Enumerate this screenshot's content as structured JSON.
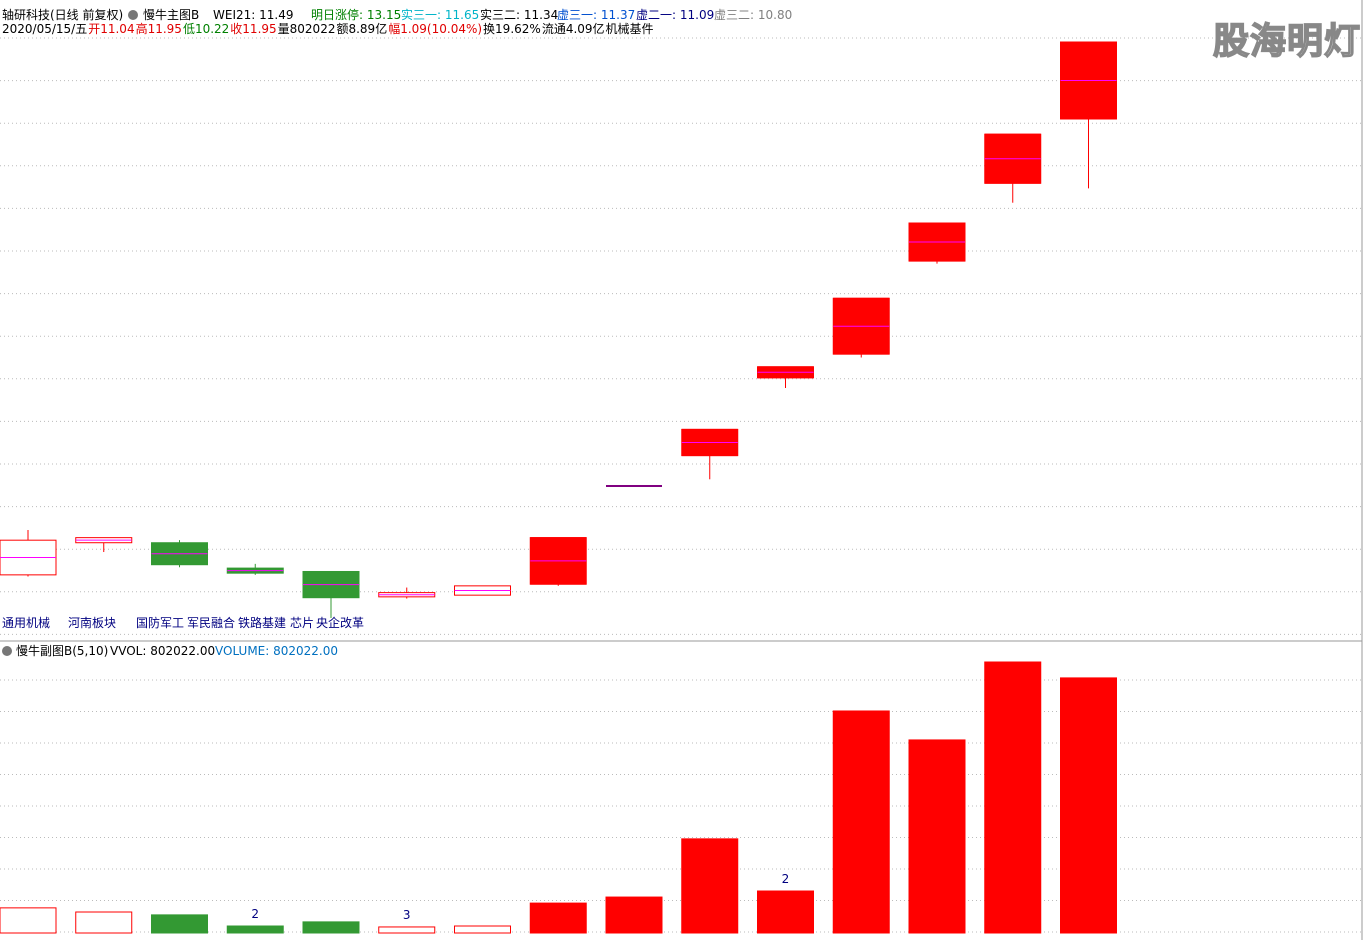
{
  "header": {
    "line1": [
      {
        "text": "轴研科技(日线 前复权)",
        "color": "#000000"
      },
      {
        "text": "慢牛主图B",
        "color": "#000000"
      },
      {
        "text": "WEI21: 11.49",
        "color": "#000000"
      },
      {
        "text": "明日涨停: 13.15",
        "color": "#008000"
      },
      {
        "text": "实三一: 11.65",
        "color": "#00b4c8"
      },
      {
        "text": "实三二: 11.34",
        "color": "#000000"
      },
      {
        "text": "虚三一: 11.37",
        "color": "#0050d0"
      },
      {
        "text": "虚二一: 11.09",
        "color": "#000080"
      },
      {
        "text": "虚三二: 10.80",
        "color": "#808080"
      }
    ],
    "line2": [
      {
        "text": "2020/05/15/五",
        "color": "#000000"
      },
      {
        "text": "开11.04",
        "color": "#e00000"
      },
      {
        "text": "高11.95",
        "color": "#e00000"
      },
      {
        "text": "低10.22",
        "color": "#008000"
      },
      {
        "text": "收11.95",
        "color": "#e00000"
      },
      {
        "text": "量802022",
        "color": "#000000"
      },
      {
        "text": "额8.89亿",
        "color": "#000000"
      },
      {
        "text": "幅1.09(10.04%)",
        "color": "#e00000"
      },
      {
        "text": "换19.62%",
        "color": "#000000"
      },
      {
        "text": "流通4.09亿",
        "color": "#000000"
      },
      {
        "text": "机械基件",
        "color": "#000000"
      }
    ],
    "watermark": "股海明灯"
  },
  "sectors": [
    "通用机械",
    "河南板块",
    "国防军工",
    "军民融合",
    "铁路基建",
    "芯片",
    "央企改革"
  ],
  "volume_header": [
    {
      "text": "慢牛副图B(5,10)",
      "color": "#000000"
    },
    {
      "text": "VVOL: 802022.00",
      "color": "#000000"
    },
    {
      "text": "VOLUME: 802022.00",
      "color": "#0070c0"
    }
  ],
  "chart_data": [
    {
      "type": "candlestick",
      "open": [
        5.65,
        6.03,
        6.03,
        5.73,
        5.69,
        5.39,
        5.41,
        5.54,
        6.7,
        7.06,
        7.98,
        8.26,
        9.36,
        10.28,
        11.04
      ],
      "high": [
        6.18,
        6.09,
        6.06,
        5.78,
        5.69,
        5.5,
        5.52,
        6.09,
        6.7,
        7.37,
        8.11,
        8.92,
        9.81,
        10.86,
        11.95
      ],
      "low": [
        5.63,
        5.92,
        5.74,
        5.65,
        5.14,
        5.37,
        5.41,
        5.52,
        6.7,
        6.78,
        7.86,
        8.22,
        9.33,
        10.05,
        10.22
      ],
      "close": [
        6.06,
        6.09,
        5.77,
        5.67,
        5.38,
        5.44,
        5.52,
        6.09,
        6.7,
        7.37,
        8.11,
        8.92,
        9.81,
        10.86,
        11.95
      ],
      "up_color": "#ff0000",
      "down_color": "#339933",
      "flat_color": "#800080",
      "solid": [
        false,
        false,
        true,
        true,
        true,
        false,
        false,
        true,
        true,
        true,
        true,
        true,
        true,
        true,
        true
      ]
    },
    {
      "type": "volume",
      "values": [
        79000,
        66000,
        57000,
        22000,
        35000,
        19000,
        22000,
        94000,
        113000,
        296000,
        132000,
        698000,
        607000,
        852000,
        802022
      ],
      "annotations": [
        {
          "index": 3,
          "text": "2"
        },
        {
          "index": 5,
          "text": "3"
        },
        {
          "index": 10,
          "text": "2"
        }
      ]
    }
  ]
}
